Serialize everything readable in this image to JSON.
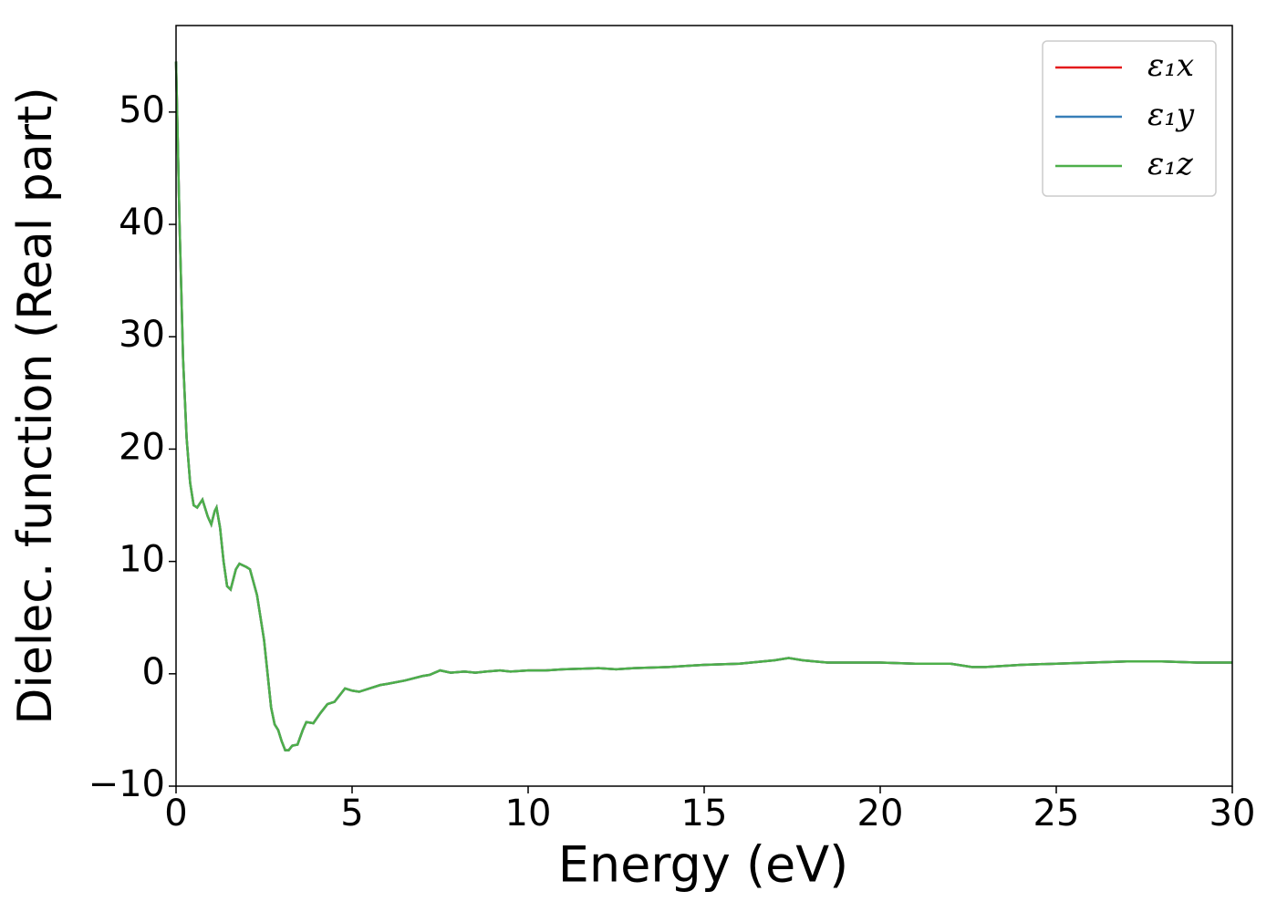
{
  "chart_data": {
    "type": "line",
    "xlabel": "Energy (eV)",
    "ylabel": "Dielec. function (Real part)",
    "x": [
      0,
      0.1,
      0.2,
      0.3,
      0.4,
      0.5,
      0.6,
      0.75,
      0.9,
      1.0,
      1.1,
      1.15,
      1.25,
      1.35,
      1.45,
      1.55,
      1.7,
      1.8,
      2.0,
      2.1,
      2.3,
      2.5,
      2.6,
      2.7,
      2.8,
      2.9,
      3.0,
      3.1,
      3.2,
      3.3,
      3.45,
      3.6,
      3.7,
      3.9,
      4.1,
      4.3,
      4.5,
      4.7,
      4.8,
      5.0,
      5.2,
      5.5,
      5.8,
      6.0,
      6.5,
      7.0,
      7.2,
      7.5,
      7.8,
      8.2,
      8.5,
      8.8,
      9.2,
      9.5,
      10,
      10.5,
      11,
      12,
      12.5,
      13,
      14,
      15,
      16,
      17,
      17.4,
      17.8,
      18.5,
      19,
      20,
      21,
      22,
      22.6,
      23,
      24,
      25,
      26,
      27,
      28,
      29,
      30
    ],
    "series": [
      {
        "name": "ε₁x",
        "color": "#e41a1c",
        "values": [
          54.5,
          40,
          28,
          21,
          17,
          15,
          14.8,
          15.5,
          14,
          13.3,
          14.5,
          14.8,
          13,
          10,
          7.8,
          7.5,
          9.3,
          9.8,
          9.5,
          9.3,
          7,
          3,
          0,
          -3,
          -4.5,
          -5,
          -6,
          -6.8,
          -6.8,
          -6.4,
          -6.3,
          -5,
          -4.3,
          -4.4,
          -3.5,
          -2.7,
          -2.5,
          -1.7,
          -1.3,
          -1.5,
          -1.6,
          -1.3,
          -1,
          -0.9,
          -0.6,
          -0.2,
          -0.1,
          0.3,
          0.1,
          0.2,
          0.1,
          0.2,
          0.3,
          0.2,
          0.3,
          0.3,
          0.4,
          0.5,
          0.4,
          0.5,
          0.6,
          0.8,
          0.9,
          1.2,
          1.4,
          1.2,
          1.0,
          1.0,
          1.0,
          0.9,
          0.9,
          0.6,
          0.6,
          0.8,
          0.9,
          1.0,
          1.1,
          1.1,
          1.0,
          1.0
        ]
      },
      {
        "name": "ε₁y",
        "color": "#377eb8",
        "values": [
          54.5,
          40,
          28,
          21,
          17,
          15,
          14.8,
          15.5,
          14,
          13.3,
          14.5,
          14.8,
          13,
          10,
          7.8,
          7.5,
          9.3,
          9.8,
          9.5,
          9.3,
          7,
          3,
          0,
          -3,
          -4.5,
          -5,
          -6,
          -6.8,
          -6.8,
          -6.4,
          -6.3,
          -5,
          -4.3,
          -4.4,
          -3.5,
          -2.7,
          -2.5,
          -1.7,
          -1.3,
          -1.5,
          -1.6,
          -1.3,
          -1,
          -0.9,
          -0.6,
          -0.2,
          -0.1,
          0.3,
          0.1,
          0.2,
          0.1,
          0.2,
          0.3,
          0.2,
          0.3,
          0.3,
          0.4,
          0.5,
          0.4,
          0.5,
          0.6,
          0.8,
          0.9,
          1.2,
          1.4,
          1.2,
          1.0,
          1.0,
          1.0,
          0.9,
          0.9,
          0.6,
          0.6,
          0.8,
          0.9,
          1.0,
          1.1,
          1.1,
          1.0,
          1.0
        ]
      },
      {
        "name": "ε₁z",
        "color": "#4daf4a",
        "values": [
          54.5,
          40,
          28,
          21,
          17,
          15,
          14.8,
          15.5,
          14,
          13.3,
          14.5,
          14.8,
          13,
          10,
          7.8,
          7.5,
          9.3,
          9.8,
          9.5,
          9.3,
          7,
          3,
          0,
          -3,
          -4.5,
          -5,
          -6,
          -6.8,
          -6.8,
          -6.4,
          -6.3,
          -5,
          -4.3,
          -4.4,
          -3.5,
          -2.7,
          -2.5,
          -1.7,
          -1.3,
          -1.5,
          -1.6,
          -1.3,
          -1,
          -0.9,
          -0.6,
          -0.2,
          -0.1,
          0.3,
          0.1,
          0.2,
          0.1,
          0.2,
          0.3,
          0.2,
          0.3,
          0.3,
          0.4,
          0.5,
          0.4,
          0.5,
          0.6,
          0.8,
          0.9,
          1.2,
          1.4,
          1.2,
          1.0,
          1.0,
          1.0,
          0.9,
          0.9,
          0.6,
          0.6,
          0.8,
          0.9,
          1.0,
          1.1,
          1.1,
          1.0,
          1.0
        ]
      }
    ],
    "xlim": [
      0,
      30
    ],
    "xticks": [
      0,
      5,
      10,
      15,
      20,
      25,
      30
    ],
    "ylim": [
      -10,
      57.7
    ],
    "yticks": [
      {
        "value": -10,
        "label": "−10"
      },
      0,
      10,
      20,
      30,
      40,
      50
    ],
    "legend": "upper right"
  }
}
